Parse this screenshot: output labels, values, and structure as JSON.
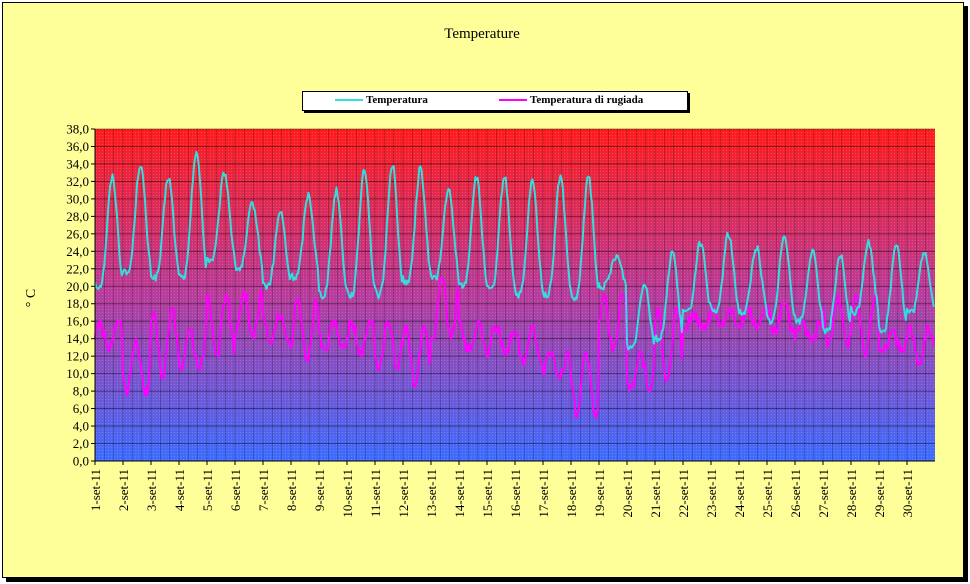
{
  "chart_data": {
    "type": "line",
    "title": "Temperature",
    "ylabel": "° C",
    "xlabel": "",
    "ylim": [
      0,
      38
    ],
    "y_ticks": [
      "0,0",
      "2,0",
      "4,0",
      "6,0",
      "8,0",
      "10,0",
      "12,0",
      "14,0",
      "16,0",
      "18,0",
      "20,0",
      "22,0",
      "24,0",
      "26,0",
      "28,0",
      "30,0",
      "32,0",
      "34,0",
      "36,0",
      "38,0"
    ],
    "categories": [
      "1-set-11",
      "2-set-11",
      "3-set-11",
      "4-set-11",
      "5-set-11",
      "6-set-11",
      "7-set-11",
      "8-set-11",
      "9-set-11",
      "10-set-11",
      "11-set-11",
      "12-set-11",
      "13-set-11",
      "14-set-11",
      "15-set-11",
      "16-set-11",
      "17-set-11",
      "18-set-11",
      "19-set-11",
      "20-set-11",
      "21-set-11",
      "22-set-11",
      "23-set-11",
      "24-set-11",
      "25-set-11",
      "26-set-11",
      "27-set-11",
      "28-set-11",
      "29-set-11",
      "30-set-11"
    ],
    "grid": true,
    "legend_position": "top",
    "background": "gradient red (top) to blue (bottom)",
    "series": [
      {
        "name": "Temperatura",
        "color": "#33dddd",
        "daily_min": [
          20.0,
          21.5,
          21.0,
          21.0,
          23.0,
          22.0,
          20.0,
          21.0,
          19.0,
          19.0,
          19.0,
          20.5,
          21.0,
          20.0,
          19.5,
          19.0,
          19.0,
          18.5,
          20.0,
          13.0,
          14.0,
          17.0,
          17.0,
          17.0,
          16.0,
          16.0,
          15.0,
          17.0,
          15.0,
          17.0
        ],
        "daily_max": [
          32.5,
          34.0,
          32.5,
          35.5,
          33.0,
          29.5,
          28.5,
          30.5,
          31.0,
          33.5,
          34.0,
          33.5,
          31.0,
          32.5,
          32.5,
          32.0,
          32.5,
          32.5,
          23.5,
          20.5,
          24.0,
          25.0,
          26.0,
          24.5,
          26.0,
          24.0,
          23.5,
          25.0,
          25.0,
          24.0
        ]
      },
      {
        "name": "Temperatura di rugiada",
        "color": "#ff00ff",
        "daily_min": [
          12.5,
          7.5,
          9.5,
          10.5,
          12.0,
          14.0,
          13.5,
          11.5,
          12.5,
          12.0,
          10.5,
          8.5,
          14.0,
          12.5,
          12.0,
          11.0,
          9.5,
          5.0,
          12.5,
          8.0,
          9.0,
          15.0,
          15.5,
          15.0,
          14.5,
          13.5,
          13.0,
          12.0,
          12.5,
          11.0
        ],
        "daily_max": [
          16.0,
          14.0,
          17.5,
          15.0,
          19.0,
          19.5,
          17.0,
          18.5,
          16.0,
          16.0,
          16.0,
          15.5,
          21.0,
          16.0,
          15.5,
          15.5,
          12.5,
          12.5,
          19.0,
          12.5,
          17.5,
          17.0,
          17.5,
          17.5,
          18.0,
          16.0,
          19.0,
          19.0,
          15.0,
          15.5
        ]
      }
    ]
  }
}
